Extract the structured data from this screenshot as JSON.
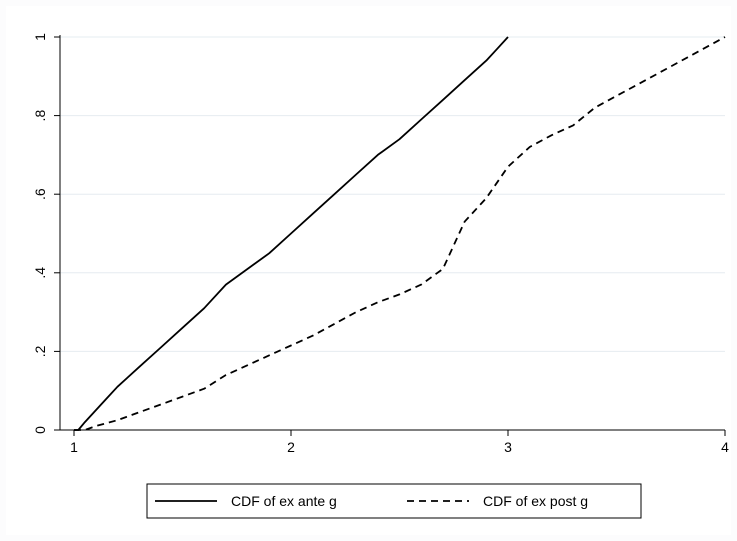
{
  "chart_data": {
    "type": "line",
    "title": "",
    "xlabel": "",
    "ylabel": "",
    "xlim": [
      1,
      4
    ],
    "ylim": [
      0,
      1
    ],
    "x_ticks": [
      1,
      2,
      3,
      4
    ],
    "x_tick_labels": [
      "1",
      "2",
      "3",
      "4"
    ],
    "y_ticks": [
      0,
      0.2,
      0.4,
      0.6,
      0.8,
      1
    ],
    "y_tick_labels": [
      "0",
      ".2",
      ".4",
      ".6",
      ".8",
      "1"
    ],
    "grid": true,
    "legend_position": "bottom",
    "series": [
      {
        "name": "CDF of ex ante g",
        "style": "solid",
        "color": "#000000",
        "x": [
          1.0,
          1.02,
          1.05,
          1.1,
          1.15,
          1.2,
          1.3,
          1.4,
          1.5,
          1.6,
          1.7,
          1.8,
          1.9,
          2.0,
          2.1,
          2.2,
          2.3,
          2.4,
          2.5,
          2.6,
          2.7,
          2.8,
          2.9,
          2.95,
          3.0
        ],
        "y": [
          0.0,
          0.0,
          0.02,
          0.05,
          0.08,
          0.11,
          0.16,
          0.21,
          0.26,
          0.31,
          0.37,
          0.41,
          0.45,
          0.5,
          0.55,
          0.6,
          0.65,
          0.7,
          0.74,
          0.79,
          0.84,
          0.89,
          0.94,
          0.97,
          1.0
        ]
      },
      {
        "name": "CDF of ex post g",
        "style": "dashed",
        "color": "#000000",
        "x": [
          1.0,
          1.05,
          1.1,
          1.2,
          1.3,
          1.4,
          1.5,
          1.6,
          1.7,
          1.8,
          1.9,
          2.0,
          2.1,
          2.2,
          2.3,
          2.4,
          2.5,
          2.6,
          2.7,
          2.8,
          2.9,
          3.0,
          3.1,
          3.2,
          3.3,
          3.4,
          3.5,
          3.6,
          3.7,
          3.8,
          3.9,
          4.0
        ],
        "y": [
          0.0,
          0.0,
          0.01,
          0.025,
          0.045,
          0.065,
          0.085,
          0.105,
          0.14,
          0.165,
          0.19,
          0.215,
          0.24,
          0.27,
          0.3,
          0.325,
          0.345,
          0.37,
          0.41,
          0.53,
          0.59,
          0.67,
          0.72,
          0.75,
          0.775,
          0.82,
          0.85,
          0.88,
          0.91,
          0.94,
          0.97,
          1.0
        ]
      }
    ]
  }
}
